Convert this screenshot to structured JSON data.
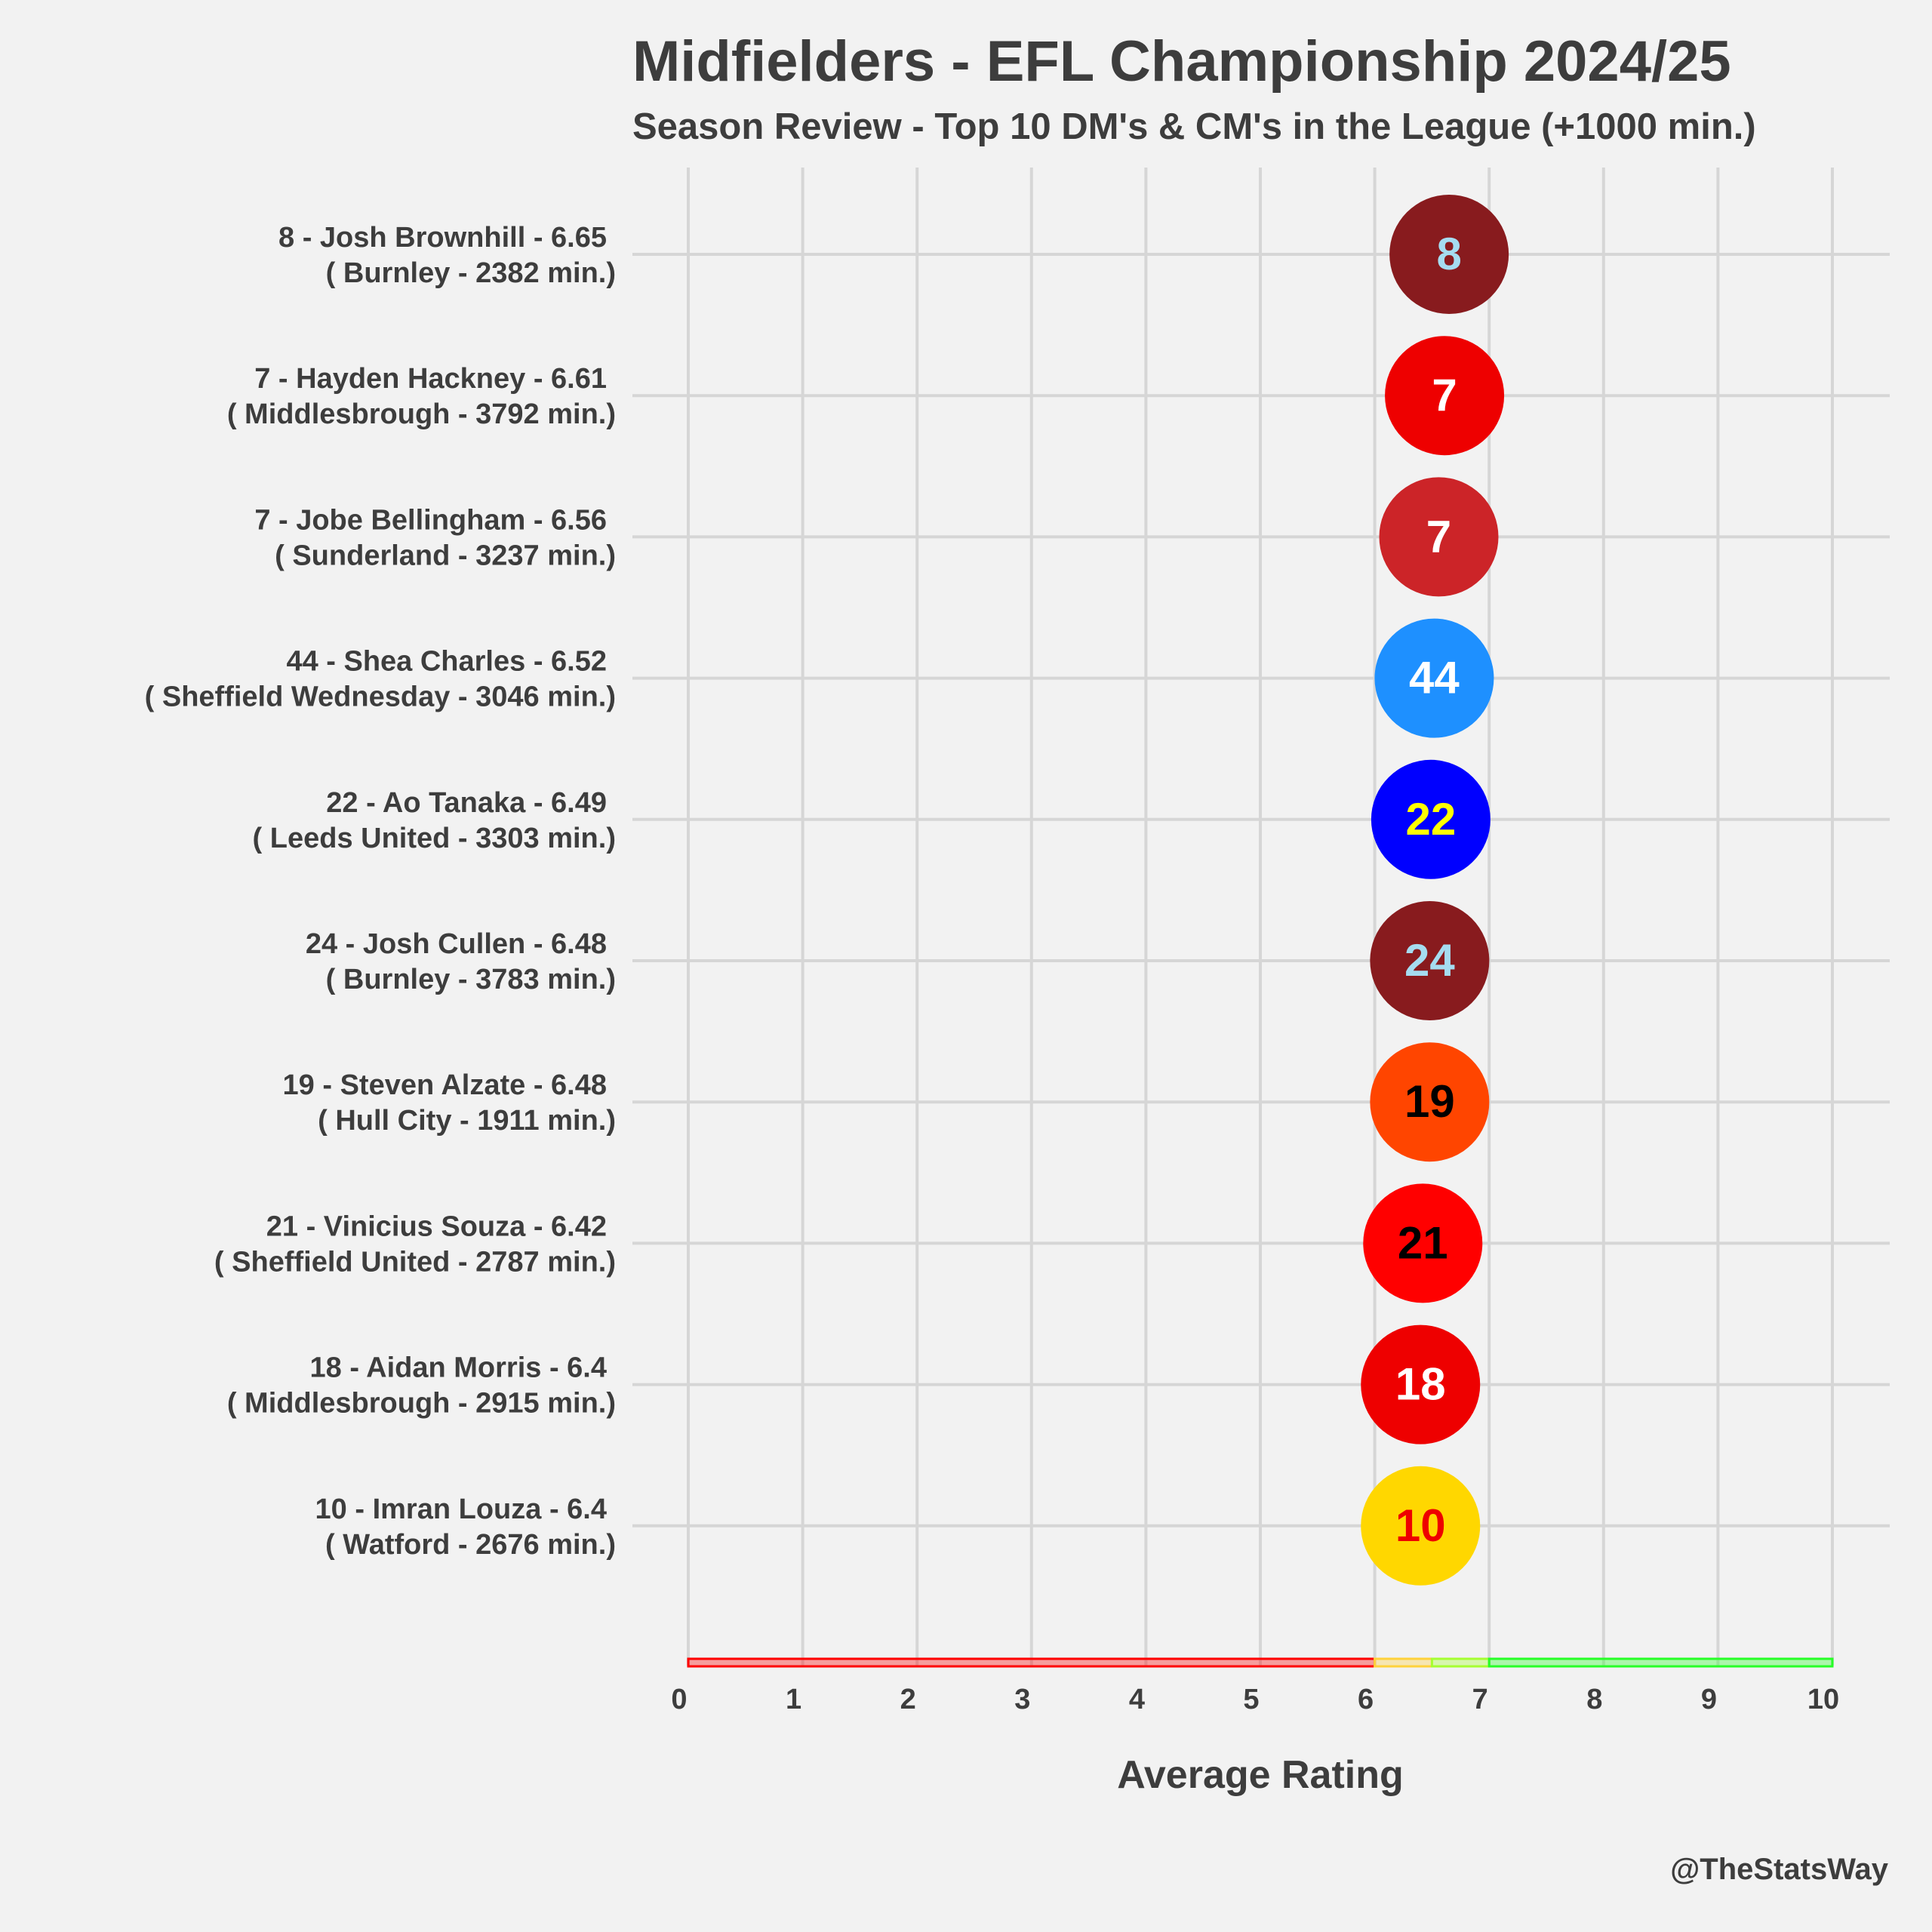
{
  "chart_data": {
    "type": "scatter",
    "title": "Midfielders - EFL Championship 2024/25",
    "subtitle": "Season Review - Top 10 DM's & CM's in the League (+1000 min.)",
    "xlabel": "Average Rating",
    "ylabel": "",
    "xlim": [
      0,
      10
    ],
    "x_ticks": [
      "0",
      "1",
      "2",
      "3",
      "4",
      "5",
      "6",
      "7",
      "8",
      "9",
      "10"
    ],
    "grid": true,
    "caption": "@TheStatsWay",
    "rating_bands": [
      {
        "from": 0,
        "to": 6,
        "color": "#ff0000"
      },
      {
        "from": 6,
        "to": 6.5,
        "color": "#ffd23c"
      },
      {
        "from": 6.5,
        "to": 7,
        "color": "#a6ff32"
      },
      {
        "from": 7,
        "to": 10,
        "color": "#27ff27"
      }
    ],
    "points": [
      {
        "label": "8 - Josh Brownhill - 6.65",
        "sublabel": "( Burnley - 2382 min.)",
        "number": "8",
        "rating": 6.65,
        "fill": "#881b1e",
        "text_color": "#a5dcf0"
      },
      {
        "label": "7 - Hayden Hackney - 6.61",
        "sublabel": "( Middlesbrough - 3792 min.)",
        "number": "7",
        "rating": 6.61,
        "fill": "#ee0000",
        "text_color": "#ffffff"
      },
      {
        "label": "7 - Jobe Bellingham - 6.56",
        "sublabel": "( Sunderland - 3237 min.)",
        "number": "7",
        "rating": 6.56,
        "fill": "#cc2428",
        "text_color": "#ffffff"
      },
      {
        "label": "44 - Shea Charles - 6.52",
        "sublabel": "( Sheffield Wednesday - 3046 min.)",
        "number": "44",
        "rating": 6.52,
        "fill": "#1e90ff",
        "text_color": "#ffffff"
      },
      {
        "label": "22 - Ao Tanaka - 6.49",
        "sublabel": "( Leeds United - 3303 min.)",
        "number": "22",
        "rating": 6.49,
        "fill": "#0000ff",
        "text_color": "#ffff00"
      },
      {
        "label": "24 - Josh Cullen - 6.48",
        "sublabel": "( Burnley - 3783 min.)",
        "number": "24",
        "rating": 6.48,
        "fill": "#881b1e",
        "text_color": "#a5dcf0"
      },
      {
        "label": "19 - Steven Alzate - 6.48",
        "sublabel": "( Hull City - 1911 min.)",
        "number": "19",
        "rating": 6.48,
        "fill": "#ff4500",
        "text_color": "#000000"
      },
      {
        "label": "21 - Vinicius Souza - 6.42",
        "sublabel": "( Sheffield United - 2787 min.)",
        "number": "21",
        "rating": 6.42,
        "fill": "#ff0000",
        "text_color": "#000000"
      },
      {
        "label": "18 - Aidan Morris - 6.4",
        "sublabel": "( Middlesbrough - 2915 min.)",
        "number": "18",
        "rating": 6.4,
        "fill": "#ee0000",
        "text_color": "#ffffff"
      },
      {
        "label": "10 - Imran Louza - 6.4",
        "sublabel": "( Watford - 2676 min.)",
        "number": "10",
        "rating": 6.4,
        "fill": "#ffd700",
        "text_color": "#ee0000"
      }
    ]
  }
}
